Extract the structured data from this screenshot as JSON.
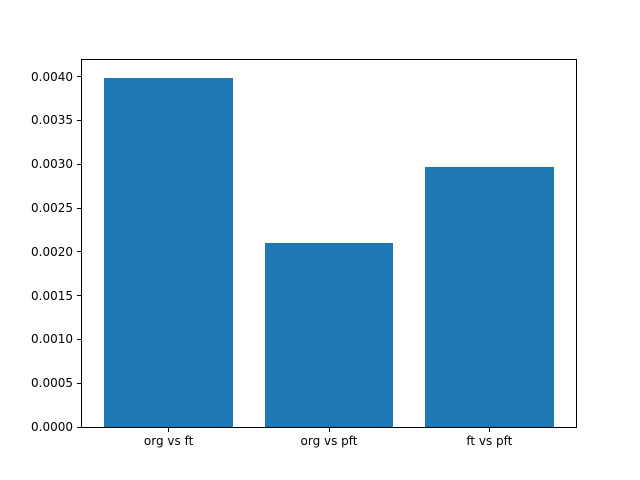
{
  "figure": {
    "background_color": "#ffffff",
    "frame_color": "#000000",
    "title": ""
  },
  "chart_data": {
    "type": "bar",
    "title": "",
    "xlabel": "",
    "ylabel": "",
    "categories": [
      "org vs ft",
      "org vs pft",
      "ft vs pft"
    ],
    "values": [
      0.00399,
      0.0021,
      0.00297
    ],
    "bar_color": "#1f77b4",
    "bar_width_fraction": 0.8,
    "xlim": [
      -0.54,
      2.54
    ],
    "ylim": [
      0,
      0.00419
    ],
    "yticks": [
      0.0,
      0.0005,
      0.001,
      0.0015,
      0.002,
      0.0025,
      0.003,
      0.0035,
      0.004
    ],
    "ytick_labels": [
      "0.0000",
      "0.0005",
      "0.0010",
      "0.0015",
      "0.0020",
      "0.0025",
      "0.0030",
      "0.0035",
      "0.0040"
    ],
    "grid": false,
    "legend": null,
    "tick_side": "left-bottom"
  }
}
